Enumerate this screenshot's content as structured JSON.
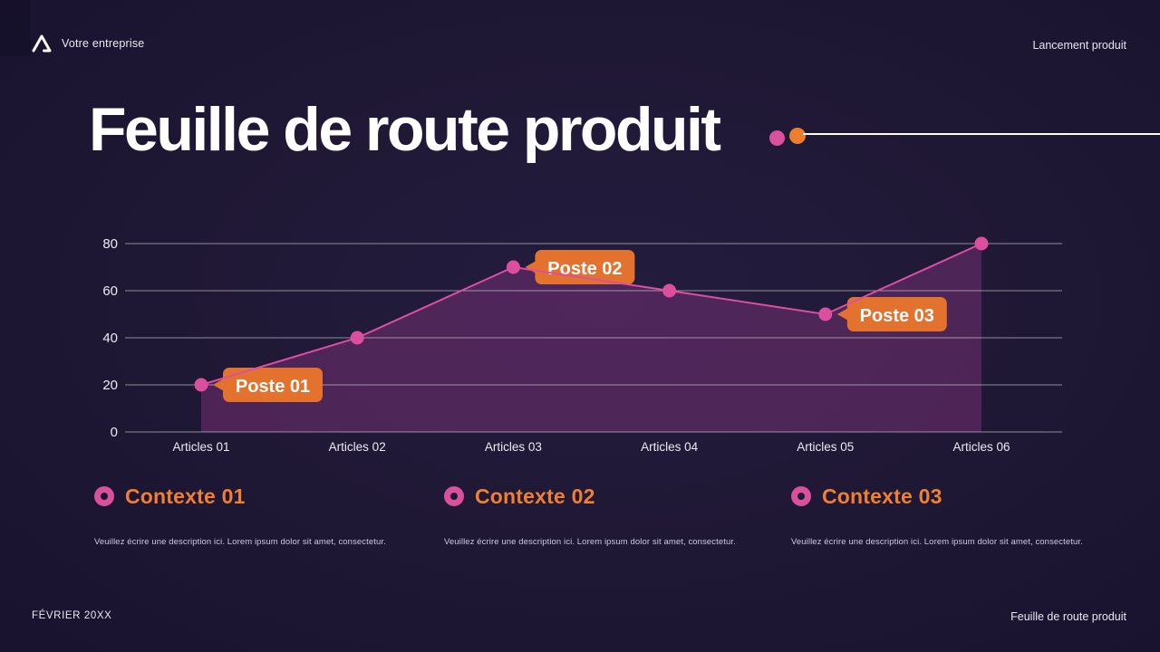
{
  "header": {
    "company": "Votre entreprise",
    "event": "Lancement produit"
  },
  "title": "Feuille de route produit",
  "chart_data": {
    "type": "area",
    "categories": [
      "Articles 01",
      "Articles 02",
      "Articles 03",
      "Articles 04",
      "Articles 05",
      "Articles 06"
    ],
    "values": [
      20,
      40,
      70,
      60,
      50,
      80
    ],
    "yticks": [
      0,
      20,
      40,
      60,
      80
    ],
    "ylim": [
      0,
      80
    ],
    "xlabel": "",
    "ylabel": "",
    "grid": "horizontal",
    "annotations": [
      {
        "label": "Poste 01",
        "index": 0
      },
      {
        "label": "Poste 02",
        "index": 2
      },
      {
        "label": "Poste 03",
        "index": 4
      }
    ],
    "colors": {
      "line": "#dc4f9e",
      "marker": "#dc4f9e",
      "area": "#8c3782",
      "annotation_bg": "#e2722e",
      "annotation_text": "#ffffff",
      "grid": "rgba(255,255,255,0.5)"
    }
  },
  "legend": {
    "items": [
      {
        "title": "Contexte 01",
        "description": "Veuillez écrire une description ici. Lorem ipsum dolor sit amet, consectetur."
      },
      {
        "title": "Contexte 02",
        "description": "Veuillez écrire une description ici. Lorem ipsum dolor sit amet, consectetur."
      },
      {
        "title": "Contexte 03",
        "description": "Veuillez écrire une description ici. Lorem ipsum dolor sit amet, consectetur."
      }
    ],
    "bullet_color": "#d9509c",
    "title_color": "#ef7f31"
  },
  "footer": {
    "date": "FÉVRIER 20XX",
    "doc": "Feuille de route produit"
  },
  "accent_colors": {
    "pink": "#d9509c",
    "orange": "#ef7d2e"
  }
}
